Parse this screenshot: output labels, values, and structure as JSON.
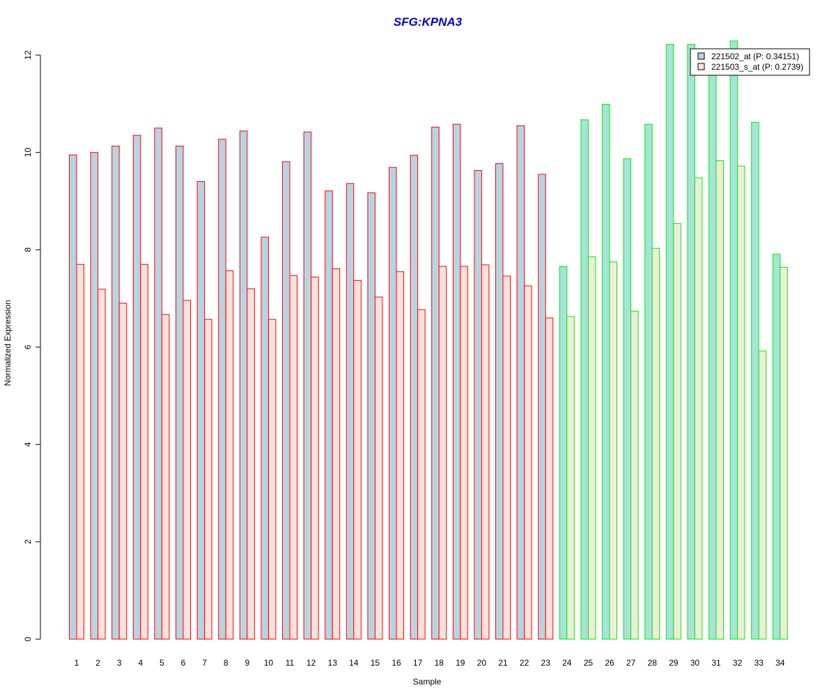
{
  "colors": {
    "title": "#0000CC",
    "group1_border": "#FF0000",
    "group2_border": "#00EE00",
    "group1_series1_fill": "#B9D3E0",
    "group1_series2_fill": "#FDE1DC",
    "group2_series1_fill": "#A6E3D8",
    "group2_series2_fill": "#EEEED8",
    "legend_series1_fill": "#B9D3E0",
    "legend_series2_fill": "#FDE1DC"
  },
  "chart_data": {
    "type": "bar",
    "title": "SFG:KPNA3",
    "xlabel": "Sample",
    "ylabel": "Normalized Expression",
    "ylim": [
      0,
      12
    ],
    "yticks": [
      "0",
      "2",
      "4",
      "6",
      "8",
      "10",
      "12"
    ],
    "grid": false,
    "legend_position": "top-right",
    "categories": [
      "1",
      "2",
      "3",
      "4",
      "5",
      "6",
      "7",
      "8",
      "9",
      "10",
      "11",
      "12",
      "13",
      "14",
      "15",
      "16",
      "17",
      "18",
      "19",
      "20",
      "21",
      "22",
      "23",
      "24",
      "25",
      "26",
      "27",
      "28",
      "29",
      "30",
      "31",
      "32",
      "33",
      "34"
    ],
    "group1_count": 23,
    "series": [
      {
        "name": "221502_at (P: 0.34151)",
        "values": [
          9.95,
          10.0,
          10.13,
          10.35,
          10.5,
          10.13,
          9.4,
          10.27,
          10.44,
          8.26,
          9.81,
          10.42,
          9.21,
          9.36,
          9.17,
          9.69,
          9.94,
          10.52,
          10.58,
          9.63,
          9.77,
          10.55,
          9.55,
          7.66,
          10.67,
          10.99,
          9.87,
          10.58,
          12.22,
          12.22,
          11.7,
          12.29,
          10.62,
          7.91
        ]
      },
      {
        "name": "221503_s_at (P: 0.2739)",
        "values": [
          7.7,
          7.19,
          6.9,
          7.7,
          6.67,
          6.96,
          6.57,
          7.57,
          7.2,
          6.57,
          7.47,
          7.44,
          7.61,
          7.37,
          7.03,
          7.55,
          6.77,
          7.66,
          7.66,
          7.69,
          7.46,
          7.26,
          6.6,
          6.63,
          7.86,
          7.75,
          6.74,
          8.03,
          8.54,
          9.48,
          9.83,
          9.72,
          5.92,
          7.64
        ]
      }
    ]
  }
}
